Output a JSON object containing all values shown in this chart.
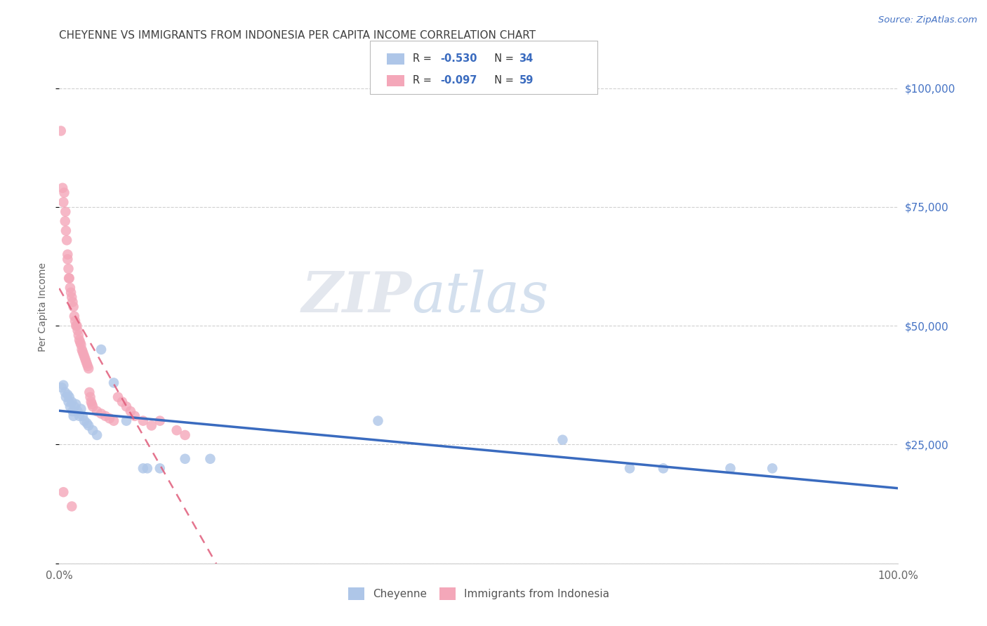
{
  "title": "CHEYENNE VS IMMIGRANTS FROM INDONESIA PER CAPITA INCOME CORRELATION CHART",
  "source": "Source: ZipAtlas.com",
  "ylabel": "Per Capita Income",
  "watermark_zip": "ZIP",
  "watermark_atlas": "atlas",
  "legend_cheyenne": "Cheyenne",
  "legend_indonesia": "Immigrants from Indonesia",
  "yticks": [
    0,
    25000,
    50000,
    75000,
    100000
  ],
  "ytick_labels": [
    "",
    "$25,000",
    "$50,000",
    "$75,000",
    "$100,000"
  ],
  "cheyenne_color": "#aec6e8",
  "cheyenne_line_color": "#3a6bbf",
  "indonesia_color": "#f4a7b9",
  "indonesia_line_color": "#e05c7a",
  "cheyenne_scatter": [
    [
      0.3,
      37000
    ],
    [
      0.5,
      37500
    ],
    [
      0.7,
      36000
    ],
    [
      0.8,
      35000
    ],
    [
      1.0,
      35500
    ],
    [
      1.1,
      34000
    ],
    [
      1.2,
      35000
    ],
    [
      1.3,
      33000
    ],
    [
      1.5,
      34000
    ],
    [
      1.6,
      32000
    ],
    [
      1.7,
      31000
    ],
    [
      1.8,
      33000
    ],
    [
      2.0,
      33500
    ],
    [
      2.2,
      32000
    ],
    [
      2.4,
      31000
    ],
    [
      2.6,
      32500
    ],
    [
      2.8,
      31000
    ],
    [
      3.0,
      30000
    ],
    [
      3.3,
      29500
    ],
    [
      3.5,
      29000
    ],
    [
      4.0,
      28000
    ],
    [
      4.5,
      27000
    ],
    [
      5.0,
      45000
    ],
    [
      6.5,
      38000
    ],
    [
      8.0,
      30000
    ],
    [
      10.0,
      20000
    ],
    [
      10.5,
      20000
    ],
    [
      12.0,
      20000
    ],
    [
      15.0,
      22000
    ],
    [
      18.0,
      22000
    ],
    [
      38.0,
      30000
    ],
    [
      60.0,
      26000
    ],
    [
      68.0,
      20000
    ],
    [
      72.0,
      20000
    ],
    [
      80.0,
      20000
    ],
    [
      85.0,
      20000
    ]
  ],
  "indonesia_scatter": [
    [
      0.2,
      91000
    ],
    [
      0.4,
      79000
    ],
    [
      0.5,
      76000
    ],
    [
      0.6,
      78000
    ],
    [
      0.7,
      72000
    ],
    [
      0.75,
      74000
    ],
    [
      0.8,
      70000
    ],
    [
      0.9,
      68000
    ],
    [
      1.0,
      65000
    ],
    [
      1.0,
      64000
    ],
    [
      1.1,
      62000
    ],
    [
      1.15,
      60000
    ],
    [
      1.2,
      60000
    ],
    [
      1.3,
      58000
    ],
    [
      1.4,
      57000
    ],
    [
      1.5,
      56000
    ],
    [
      1.6,
      55000
    ],
    [
      1.7,
      54000
    ],
    [
      1.8,
      52000
    ],
    [
      1.9,
      51000
    ],
    [
      2.0,
      50000
    ],
    [
      2.1,
      50000
    ],
    [
      2.2,
      49000
    ],
    [
      2.3,
      48000
    ],
    [
      2.4,
      47000
    ],
    [
      2.5,
      46500
    ],
    [
      2.6,
      46000
    ],
    [
      2.7,
      45000
    ],
    [
      2.8,
      44500
    ],
    [
      2.9,
      44000
    ],
    [
      3.0,
      43500
    ],
    [
      3.1,
      43000
    ],
    [
      3.2,
      42500
    ],
    [
      3.3,
      42000
    ],
    [
      3.4,
      41500
    ],
    [
      3.5,
      41000
    ],
    [
      3.6,
      36000
    ],
    [
      3.7,
      35000
    ],
    [
      3.8,
      34000
    ],
    [
      3.9,
      33500
    ],
    [
      4.0,
      33000
    ],
    [
      4.5,
      32000
    ],
    [
      5.0,
      31500
    ],
    [
      5.5,
      31000
    ],
    [
      6.0,
      30500
    ],
    [
      6.5,
      30000
    ],
    [
      7.0,
      35000
    ],
    [
      7.5,
      34000
    ],
    [
      8.0,
      33000
    ],
    [
      8.5,
      32000
    ],
    [
      9.0,
      31000
    ],
    [
      10.0,
      30000
    ],
    [
      11.0,
      29000
    ],
    [
      12.0,
      30000
    ],
    [
      14.0,
      28000
    ],
    [
      15.0,
      27000
    ],
    [
      0.5,
      15000
    ],
    [
      1.5,
      12000
    ]
  ],
  "xlim": [
    0,
    100
  ],
  "ylim": [
    0,
    108000
  ],
  "bg_color": "#ffffff",
  "grid_color": "#d0d0d0",
  "title_color": "#404040",
  "source_color": "#4472c4",
  "right_axis_color": "#4472c4"
}
